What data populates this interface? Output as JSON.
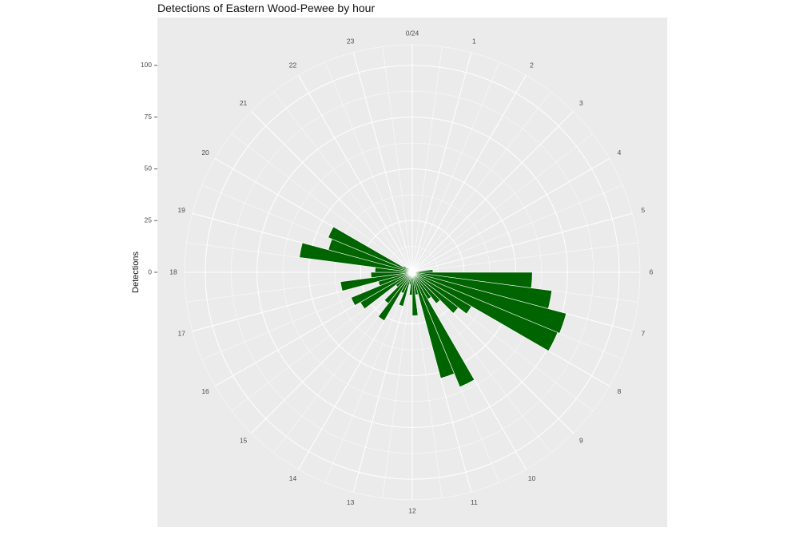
{
  "chart_data": {
    "type": "bar",
    "polar": true,
    "title": "Detections of Eastern Wood-Pewee by hour",
    "ylabel": "Detections",
    "xlabel": "",
    "ylim": [
      0,
      110
    ],
    "y_ticks": [
      0,
      25,
      50,
      75,
      100
    ],
    "bar_color": "#006400",
    "panel_color": "#ebebeb",
    "grid_color": "#ffffff",
    "grid": true,
    "categories": [
      "0/24",
      "1",
      "2",
      "3",
      "4",
      "5",
      "6",
      "7",
      "8",
      "9",
      "10",
      "11",
      "12",
      "13",
      "14",
      "15",
      "16",
      "17",
      "18",
      "19",
      "20",
      "21",
      "22",
      "23"
    ],
    "hour_labels": [
      "0/24",
      "1",
      "2",
      "3",
      "4",
      "5",
      "6",
      "7",
      "8",
      "9",
      "10",
      "11",
      "12",
      "13",
      "14",
      "15",
      "16",
      "17",
      "18",
      "19",
      "20",
      "21",
      "22",
      "23"
    ],
    "bars": [
      {
        "start": 5.5,
        "end": 6.0,
        "value": 10
      },
      {
        "start": 6.0,
        "end": 6.5,
        "value": 58
      },
      {
        "start": 6.5,
        "end": 7.0,
        "value": 68
      },
      {
        "start": 7.0,
        "end": 7.5,
        "value": 77
      },
      {
        "start": 7.5,
        "end": 8.0,
        "value": 76
      },
      {
        "start": 8.0,
        "end": 8.5,
        "value": 33
      },
      {
        "start": 8.5,
        "end": 9.0,
        "value": 28
      },
      {
        "start": 9.0,
        "end": 9.5,
        "value": 19
      },
      {
        "start": 9.5,
        "end": 10.0,
        "value": 15
      },
      {
        "start": 10.0,
        "end": 10.5,
        "value": 60
      },
      {
        "start": 10.5,
        "end": 11.0,
        "value": 53
      },
      {
        "start": 11.0,
        "end": 11.5,
        "value": 11
      },
      {
        "start": 11.5,
        "end": 12.0,
        "value": 21
      },
      {
        "start": 12.0,
        "end": 12.5,
        "value": 11
      },
      {
        "start": 12.5,
        "end": 13.0,
        "value": 6
      },
      {
        "start": 13.0,
        "end": 13.5,
        "value": 17
      },
      {
        "start": 13.5,
        "end": 14.0,
        "value": 11
      },
      {
        "start": 14.0,
        "end": 14.5,
        "value": 27
      },
      {
        "start": 14.5,
        "end": 15.0,
        "value": 19
      },
      {
        "start": 15.0,
        "end": 15.5,
        "value": 10
      },
      {
        "start": 15.5,
        "end": 16.0,
        "value": 29
      },
      {
        "start": 16.0,
        "end": 16.5,
        "value": 32
      },
      {
        "start": 16.5,
        "end": 17.0,
        "value": 17
      },
      {
        "start": 17.0,
        "end": 17.5,
        "value": 35
      },
      {
        "start": 17.5,
        "end": 18.0,
        "value": 20
      },
      {
        "start": 18.0,
        "end": 18.5,
        "value": 18
      },
      {
        "start": 18.5,
        "end": 19.0,
        "value": 55
      },
      {
        "start": 19.0,
        "end": 19.5,
        "value": 42
      },
      {
        "start": 19.5,
        "end": 20.0,
        "value": 44
      },
      {
        "start": 20.0,
        "end": 20.5,
        "value": 5
      },
      {
        "start": 20.5,
        "end": 21.0,
        "value": 3
      }
    ]
  }
}
